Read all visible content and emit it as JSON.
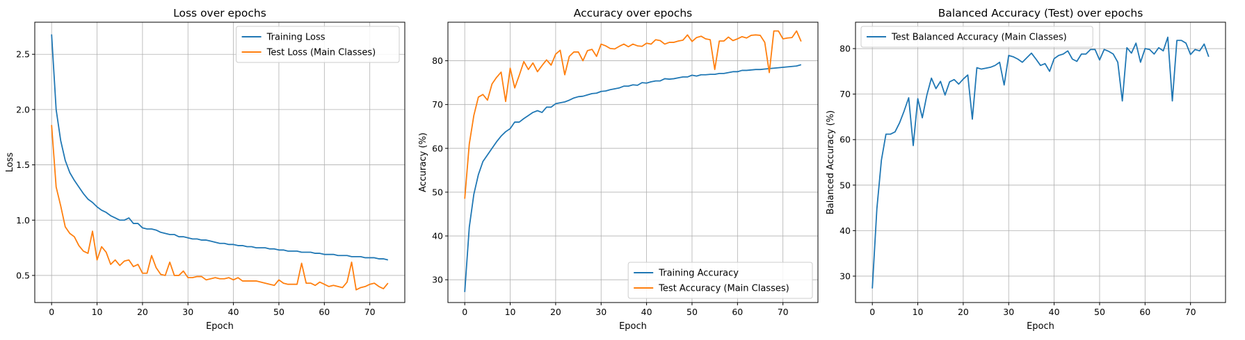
{
  "colors": {
    "blue": "#1f77b4",
    "orange": "#ff7f0e",
    "grid": "#b0b0b0"
  },
  "chart_data": [
    {
      "type": "line",
      "title": "Loss over epochs",
      "xlabel": "Epoch",
      "ylabel": "Loss",
      "xlim": [
        -3.7,
        77.7
      ],
      "ylim": [
        0.255,
        2.79
      ],
      "xticks": [
        0,
        10,
        20,
        30,
        40,
        50,
        60,
        70
      ],
      "yticks": [
        0.5,
        1.0,
        1.5,
        2.0,
        2.5
      ],
      "ytick_labels": [
        "0.5",
        "1.0",
        "1.5",
        "2.0",
        "2.5"
      ],
      "grid": true,
      "legend": "top-right",
      "series": [
        {
          "name": "Training Loss",
          "color": "#1f77b4",
          "values": [
            2.68,
            2.0,
            1.72,
            1.54,
            1.43,
            1.36,
            1.3,
            1.24,
            1.19,
            1.16,
            1.12,
            1.09,
            1.07,
            1.04,
            1.02,
            1.0,
            1.0,
            1.02,
            0.97,
            0.97,
            0.93,
            0.92,
            0.92,
            0.91,
            0.89,
            0.88,
            0.87,
            0.87,
            0.85,
            0.85,
            0.84,
            0.83,
            0.83,
            0.82,
            0.82,
            0.81,
            0.8,
            0.79,
            0.79,
            0.78,
            0.78,
            0.77,
            0.77,
            0.76,
            0.76,
            0.75,
            0.75,
            0.75,
            0.74,
            0.74,
            0.73,
            0.73,
            0.72,
            0.72,
            0.72,
            0.71,
            0.71,
            0.71,
            0.7,
            0.7,
            0.69,
            0.69,
            0.69,
            0.68,
            0.68,
            0.68,
            0.67,
            0.67,
            0.67,
            0.66,
            0.66,
            0.66,
            0.65,
            0.65,
            0.64
          ]
        },
        {
          "name": "Test Loss (Main Classes)",
          "color": "#ff7f0e",
          "values": [
            1.86,
            1.3,
            1.13,
            0.94,
            0.88,
            0.85,
            0.77,
            0.72,
            0.7,
            0.9,
            0.64,
            0.76,
            0.71,
            0.6,
            0.64,
            0.59,
            0.63,
            0.64,
            0.58,
            0.6,
            0.52,
            0.52,
            0.68,
            0.57,
            0.51,
            0.5,
            0.62,
            0.5,
            0.5,
            0.54,
            0.48,
            0.48,
            0.49,
            0.49,
            0.46,
            0.47,
            0.48,
            0.47,
            0.47,
            0.48,
            0.46,
            0.48,
            0.45,
            0.45,
            0.45,
            0.45,
            0.44,
            0.43,
            0.42,
            0.41,
            0.46,
            0.43,
            0.42,
            0.42,
            0.42,
            0.61,
            0.43,
            0.43,
            0.41,
            0.44,
            0.42,
            0.4,
            0.41,
            0.4,
            0.39,
            0.44,
            0.62,
            0.37,
            0.39,
            0.4,
            0.42,
            0.43,
            0.4,
            0.38,
            0.43
          ]
        }
      ]
    },
    {
      "type": "line",
      "title": "Accuracy over epochs",
      "xlabel": "Epoch",
      "ylabel": "Accuracy (%)",
      "xlim": [
        -3.7,
        77.7
      ],
      "ylim": [
        24.8,
        88.8
      ],
      "xticks": [
        0,
        10,
        20,
        30,
        40,
        50,
        60,
        70
      ],
      "yticks": [
        30,
        40,
        50,
        60,
        70,
        80
      ],
      "ytick_labels": [
        "30",
        "40",
        "50",
        "60",
        "70",
        "80"
      ],
      "grid": true,
      "legend": "bottom-right",
      "series": [
        {
          "name": "Training Accuracy",
          "color": "#1f77b4",
          "values": [
            27.2,
            42.0,
            49.5,
            54.0,
            57.0,
            58.5,
            60.0,
            61.5,
            62.8,
            63.8,
            64.5,
            66.0,
            66.0,
            66.8,
            67.5,
            68.2,
            68.6,
            68.2,
            69.4,
            69.4,
            70.2,
            70.4,
            70.6,
            71.0,
            71.5,
            71.8,
            71.9,
            72.2,
            72.5,
            72.6,
            73.0,
            73.1,
            73.4,
            73.6,
            73.8,
            74.2,
            74.2,
            74.5,
            74.4,
            75.0,
            74.9,
            75.2,
            75.4,
            75.4,
            75.9,
            75.8,
            75.9,
            76.1,
            76.3,
            76.3,
            76.7,
            76.5,
            76.8,
            76.8,
            76.9,
            76.9,
            77.1,
            77.1,
            77.3,
            77.5,
            77.5,
            77.8,
            77.8,
            77.9,
            78.0,
            78.0,
            78.1,
            78.2,
            78.3,
            78.4,
            78.5,
            78.6,
            78.7,
            78.8,
            79.1
          ]
        },
        {
          "name": "Test Accuracy (Main Classes)",
          "color": "#ff7f0e",
          "values": [
            48.5,
            61.0,
            67.5,
            71.7,
            72.3,
            71.0,
            74.7,
            76.2,
            77.4,
            70.7,
            78.3,
            73.8,
            76.7,
            79.8,
            78.0,
            79.5,
            77.5,
            78.9,
            80.2,
            79.0,
            81.5,
            82.4,
            76.8,
            81.0,
            82.0,
            82.0,
            80.0,
            82.3,
            82.6,
            81.0,
            83.8,
            83.4,
            82.8,
            82.7,
            83.3,
            83.8,
            83.2,
            83.8,
            83.4,
            83.3,
            84.0,
            83.8,
            84.8,
            84.6,
            83.8,
            84.2,
            84.2,
            84.5,
            84.7,
            85.9,
            84.4,
            85.3,
            85.6,
            85.0,
            84.8,
            78.0,
            84.5,
            84.5,
            85.4,
            84.6,
            85.0,
            85.5,
            85.2,
            85.8,
            85.9,
            85.8,
            84.2,
            77.3,
            86.8,
            86.8,
            85.0,
            85.2,
            85.3,
            86.8,
            84.4
          ]
        }
      ]
    },
    {
      "type": "line",
      "title": "Balanced Accuracy (Test) over epochs",
      "xlabel": "Epoch",
      "ylabel": "Balanced Accuracy (%)",
      "xlim": [
        -3.7,
        77.7
      ],
      "ylim": [
        24.2,
        85.8
      ],
      "xticks": [
        0,
        10,
        20,
        30,
        40,
        50,
        60,
        70
      ],
      "yticks": [
        30,
        40,
        50,
        60,
        70,
        80
      ],
      "ytick_labels": [
        "30",
        "40",
        "50",
        "60",
        "70",
        "80"
      ],
      "grid": true,
      "legend": "top-left",
      "series": [
        {
          "name": "Test Balanced Accuracy (Main Classes)",
          "color": "#1f77b4",
          "values": [
            27.3,
            44.8,
            55.5,
            61.2,
            61.2,
            61.7,
            63.7,
            66.3,
            69.2,
            58.7,
            69.0,
            64.8,
            69.8,
            73.5,
            71.2,
            72.8,
            69.8,
            72.7,
            73.2,
            72.2,
            73.3,
            74.2,
            64.5,
            75.8,
            75.5,
            75.7,
            75.9,
            76.3,
            77.0,
            72.0,
            78.5,
            78.2,
            77.7,
            77.0,
            78.0,
            79.0,
            77.7,
            76.3,
            76.7,
            75.0,
            77.8,
            78.5,
            78.8,
            79.5,
            77.7,
            77.2,
            78.8,
            78.8,
            79.8,
            79.8,
            77.5,
            79.8,
            79.4,
            78.8,
            77.0,
            68.5,
            80.2,
            79.0,
            81.2,
            77.0,
            80.0,
            79.8,
            78.8,
            80.2,
            79.5,
            82.5,
            68.5,
            81.8,
            81.8,
            81.2,
            78.7,
            79.8,
            79.5,
            81.0,
            78.2
          ]
        }
      ]
    }
  ]
}
